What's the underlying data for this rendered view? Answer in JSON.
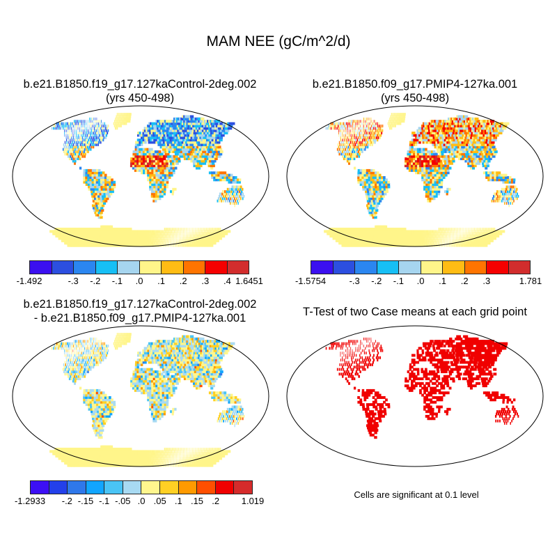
{
  "title": "MAM NEE (gC/m^2/d)",
  "panels": [
    {
      "title1": "b.e21.B1850.f19_g17.127kaControl-2deg.002",
      "title2": "(yrs 450-498)"
    },
    {
      "title1": "b.e21.B1850.f09_g17.PMIP4-127ka.001",
      "title2": "(yrs 450-498)"
    },
    {
      "title1": "b.e21.B1850.f19_g17.127kaControl-2deg.002",
      "title2": "- b.e21.B1850.f09_g17.PMIP4-127ka.001"
    },
    {
      "title1": "T-Test of two Case means at each grid point",
      "title2": ""
    }
  ],
  "colorbars": [
    {
      "colors": [
        "#3b10f0",
        "#2c4fe0",
        "#2b86f0",
        "#17bff5",
        "#a6d5ef",
        "#fff58a",
        "#ffbc14",
        "#ff7400",
        "#f50000",
        "#d22d2d"
      ],
      "ticks": [
        {
          "i": 0,
          "label": "-1.492"
        },
        {
          "i": 2,
          "label": "-.3"
        },
        {
          "i": 3,
          "label": "-.2"
        },
        {
          "i": 4,
          "label": "-.1"
        },
        {
          "i": 5,
          "label": ".0"
        },
        {
          "i": 6,
          "label": ".1"
        },
        {
          "i": 7,
          "label": ".2"
        },
        {
          "i": 8,
          "label": ".3"
        },
        {
          "i": 9,
          "label": ".4"
        },
        {
          "i": 10,
          "label": "1.6451"
        }
      ]
    },
    {
      "colors": [
        "#3b10f0",
        "#2c4fe0",
        "#2b86f0",
        "#17bff5",
        "#a6d5ef",
        "#fff58a",
        "#ffbc14",
        "#ff7400",
        "#f50000",
        "#d22d2d"
      ],
      "ticks": [
        {
          "i": 0,
          "label": "-1.5754"
        },
        {
          "i": 2,
          "label": "-.3"
        },
        {
          "i": 3,
          "label": "-.2"
        },
        {
          "i": 4,
          "label": "-.1"
        },
        {
          "i": 5,
          "label": ".0"
        },
        {
          "i": 6,
          "label": ".1"
        },
        {
          "i": 7,
          "label": ".2"
        },
        {
          "i": 8,
          "label": ".3"
        },
        {
          "i": 10,
          "label": "1.781"
        }
      ]
    },
    {
      "colors": [
        "#3c0ff5",
        "#2340ea",
        "#2f78ea",
        "#11a5ff",
        "#4ac4f5",
        "#a8daf2",
        "#fff68e",
        "#ffd024",
        "#ff9a00",
        "#ff4f00",
        "#f00000",
        "#d52b2b"
      ],
      "ticks": [
        {
          "i": 0,
          "label": "-1.2933"
        },
        {
          "i": 2,
          "label": "-.2"
        },
        {
          "i": 3,
          "label": "-.15"
        },
        {
          "i": 4,
          "label": "-.1"
        },
        {
          "i": 5,
          "label": "-.05"
        },
        {
          "i": 6,
          "label": ".0"
        },
        {
          "i": 7,
          "label": ".05"
        },
        {
          "i": 8,
          "label": ".1"
        },
        {
          "i": 9,
          "label": ".15"
        },
        {
          "i": 10,
          "label": ".2"
        },
        {
          "i": 12,
          "label": "1.019"
        }
      ]
    }
  ],
  "significance_note": "Cells are significant at 0.1 level",
  "significance_color": "#f00000"
}
